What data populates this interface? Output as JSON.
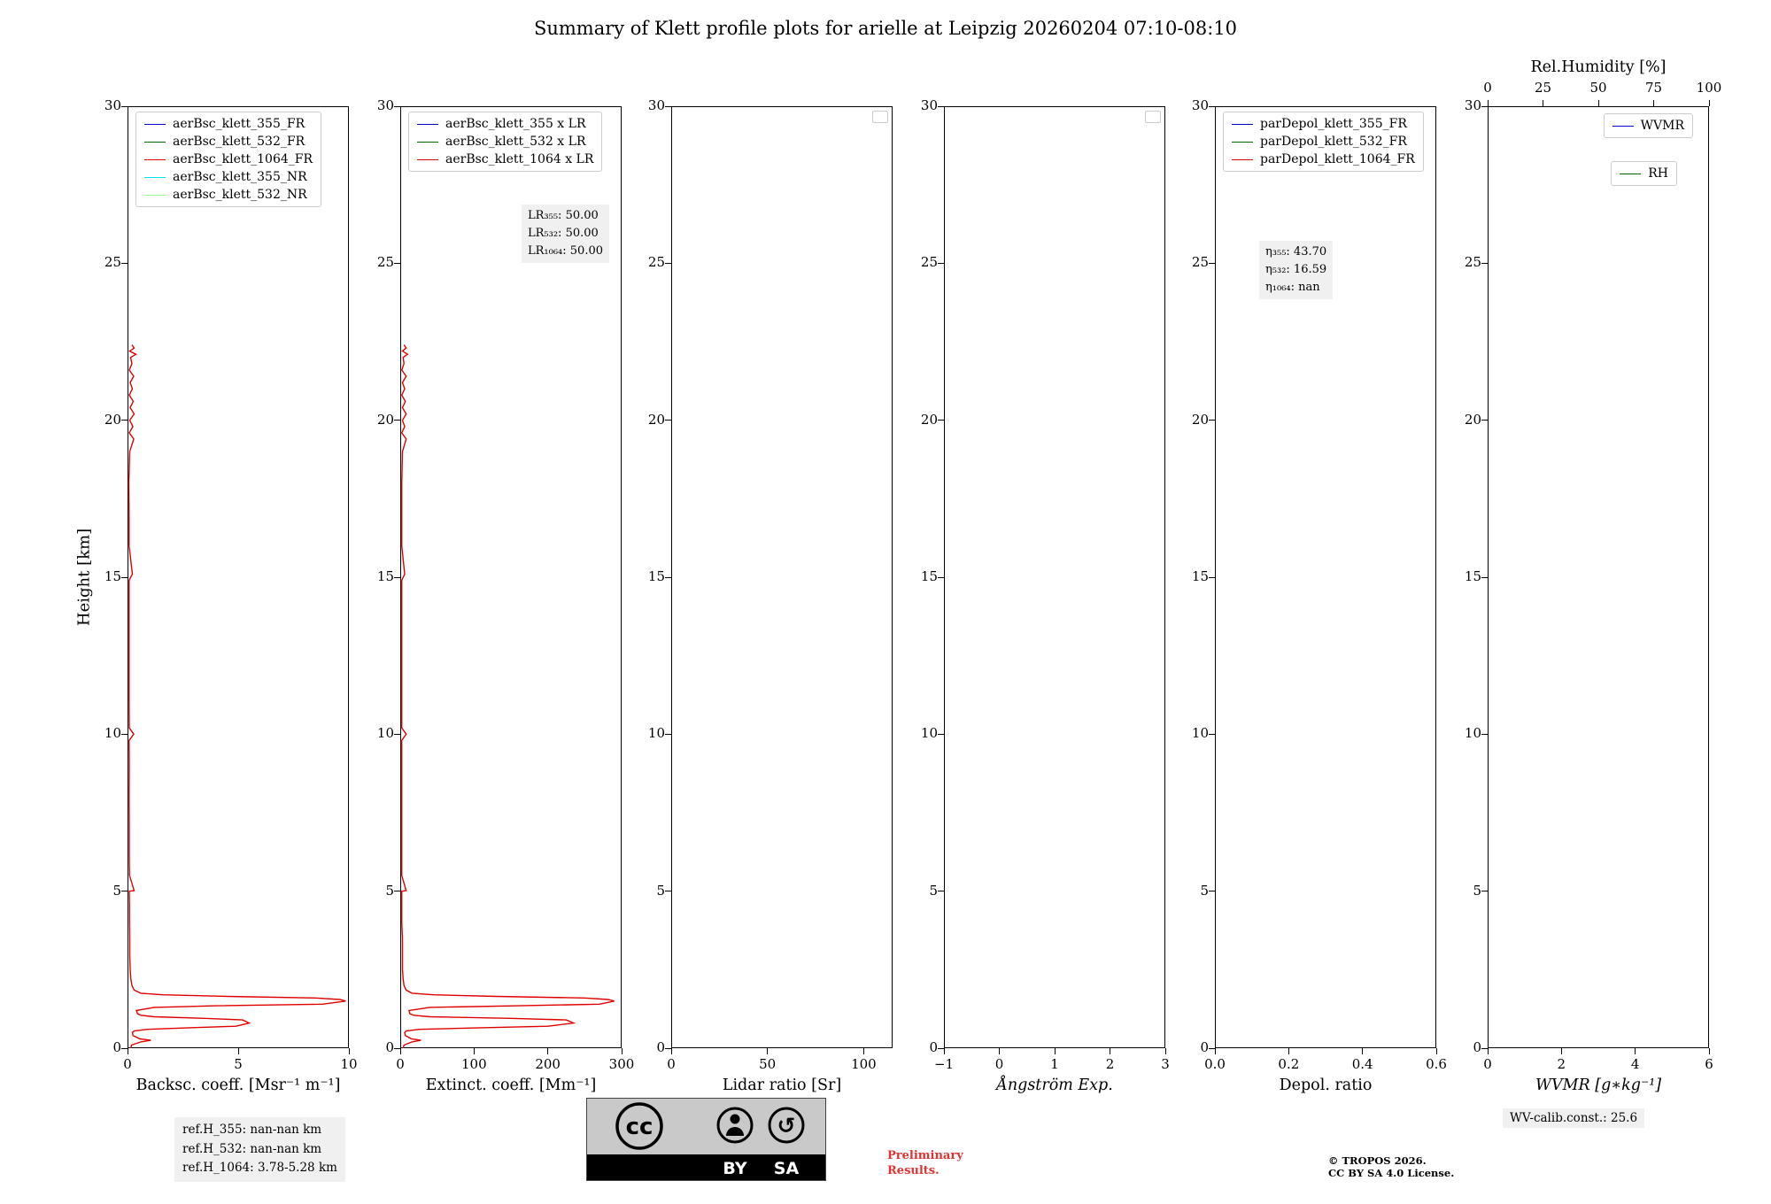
{
  "title": "Summary of Klett profile plots for arielle at Leipzig 20260204 07:10-08:10",
  "y_axis": {
    "label": "Height [km]",
    "lim": [
      0,
      30
    ],
    "ticks": [
      0,
      5,
      10,
      15,
      20,
      25,
      30
    ]
  },
  "chart_data": [
    {
      "name": "backscatter",
      "type": "line",
      "xlabel": "Backsc. coeff. [Msr⁻¹ m⁻¹]",
      "xlim": [
        0,
        10
      ],
      "x_ticks": [
        {
          "v": 0,
          "t": "0"
        },
        {
          "v": 5,
          "t": "5"
        },
        {
          "v": 10,
          "t": "10"
        }
      ],
      "legend": [
        {
          "label": "aerBsc_klett_355_FR",
          "color": "#0000cd"
        },
        {
          "label": "aerBsc_klett_532_FR",
          "color": "#006400"
        },
        {
          "label": "aerBsc_klett_1064_FR",
          "color": "#e00000"
        },
        {
          "label": "aerBsc_klett_355_NR",
          "color": "#00e5ee"
        },
        {
          "label": "aerBsc_klett_532_NR",
          "color": "#98fb98"
        }
      ],
      "series": [
        {
          "name": "aerBsc_klett_1064_FR",
          "color": "#e00000",
          "heights": [
            0.0,
            0.1,
            0.2,
            0.25,
            0.3,
            0.4,
            0.5,
            0.55,
            0.6,
            0.65,
            0.7,
            0.8,
            0.9,
            0.95,
            1.0,
            1.05,
            1.1,
            1.2,
            1.3,
            1.35,
            1.4,
            1.5,
            1.55,
            1.6,
            1.65,
            1.7,
            1.75,
            1.85,
            2.0,
            2.2,
            2.5,
            3.0,
            3.5,
            4.0,
            4.5,
            5.0,
            5.02,
            5.5,
            6.0,
            7.0,
            8.0,
            9.0,
            9.8,
            10.0,
            10.2,
            11.0,
            12.0,
            13.0,
            14.0,
            14.9,
            15.1,
            16.0,
            17.0,
            18.0,
            19.0,
            19.4,
            19.6,
            19.8,
            20.0,
            20.2,
            20.4,
            20.6,
            20.8,
            21.0,
            21.2,
            21.4,
            21.6,
            21.8,
            22.0,
            22.1,
            22.2,
            22.3,
            22.4
          ],
          "values": [
            0.15,
            0.18,
            0.6,
            1.05,
            0.55,
            0.25,
            0.22,
            0.3,
            0.9,
            2.8,
            4.9,
            5.5,
            5.2,
            3.5,
            1.2,
            0.6,
            0.45,
            0.4,
            1.2,
            4.0,
            8.8,
            9.85,
            9.6,
            8.5,
            4.5,
            1.6,
            0.6,
            0.3,
            0.2,
            0.15,
            0.12,
            0.1,
            0.1,
            0.09,
            0.09,
            0.08,
            0.3,
            0.09,
            0.08,
            0.08,
            0.07,
            0.08,
            0.07,
            0.28,
            0.08,
            0.07,
            0.07,
            0.07,
            0.07,
            0.07,
            0.22,
            0.07,
            0.07,
            0.06,
            0.1,
            0.28,
            0.08,
            0.24,
            0.1,
            0.3,
            0.12,
            0.26,
            0.08,
            0.22,
            0.12,
            0.28,
            0.08,
            0.2,
            0.14,
            0.38,
            0.1,
            0.3,
            0.2
          ]
        }
      ]
    },
    {
      "name": "extinction",
      "type": "line",
      "xlabel": "Extinct. coeff. [Mm⁻¹]",
      "xlim": [
        0,
        300
      ],
      "x_ticks": [
        {
          "v": 0,
          "t": "0"
        },
        {
          "v": 100,
          "t": "100"
        },
        {
          "v": 200,
          "t": "200"
        },
        {
          "v": 300,
          "t": "300"
        }
      ],
      "legend": [
        {
          "label": "aerBsc_klett_355 x LR",
          "color": "#0000cd"
        },
        {
          "label": "aerBsc_klett_532 x LR",
          "color": "#006400"
        },
        {
          "label": "aerBsc_klett_1064 x LR",
          "color": "#e00000"
        }
      ],
      "notes": [
        "LR₃₅₅: 50.00",
        "LR₅₃₂: 50.00",
        "LR₁₀₆₄: 50.00"
      ],
      "series": [
        {
          "name": "aerBsc_klett_1064 x LR",
          "color": "#e00000",
          "heights": [
            0.0,
            0.1,
            0.2,
            0.25,
            0.3,
            0.4,
            0.5,
            0.55,
            0.6,
            0.65,
            0.7,
            0.8,
            0.9,
            0.95,
            1.0,
            1.05,
            1.1,
            1.2,
            1.3,
            1.35,
            1.4,
            1.5,
            1.55,
            1.6,
            1.65,
            1.7,
            1.75,
            1.85,
            2.0,
            2.2,
            2.5,
            3.0,
            3.5,
            4.0,
            4.5,
            5.0,
            5.02,
            5.5,
            6.0,
            7.0,
            8.0,
            9.0,
            9.8,
            10.0,
            10.2,
            11.0,
            12.0,
            13.0,
            14.0,
            14.9,
            15.1,
            16.0,
            17.0,
            18.0,
            19.0,
            19.4,
            19.6,
            19.8,
            20.0,
            20.2,
            20.4,
            20.6,
            20.8,
            21.0,
            21.2,
            21.4,
            21.6,
            21.8,
            22.0,
            22.1,
            22.2,
            22.3,
            22.4
          ],
          "values": [
            4,
            5,
            16,
            28,
            15,
            7,
            6,
            8,
            26,
            110,
            200,
            235,
            225,
            150,
            40,
            18,
            13,
            12,
            40,
            160,
            270,
            290,
            282,
            250,
            130,
            45,
            16,
            8,
            5,
            4,
            3,
            3,
            3,
            2,
            2,
            2,
            8,
            2,
            2,
            2,
            2,
            2,
            2,
            8,
            2,
            2,
            2,
            2,
            2,
            2,
            6,
            2,
            2,
            2,
            3,
            8,
            2,
            6,
            3,
            8,
            3,
            7,
            2,
            6,
            3,
            8,
            2,
            5,
            4,
            10,
            3,
            8,
            5
          ]
        }
      ]
    },
    {
      "name": "lidar-ratio",
      "type": "line",
      "xlabel": "Lidar ratio [Sr]",
      "xlim": [
        0,
        115
      ],
      "x_ticks": [
        {
          "v": 0,
          "t": "0"
        },
        {
          "v": 50,
          "t": "50"
        },
        {
          "v": 100,
          "t": "100"
        }
      ],
      "legend_empty": true,
      "series": []
    },
    {
      "name": "angstroem-exponent",
      "type": "line",
      "xlabel": "Ångström Exp.",
      "xlabel_italic": true,
      "xlim": [
        -1,
        3
      ],
      "x_ticks": [
        {
          "v": -1,
          "t": "−1"
        },
        {
          "v": 0,
          "t": "0"
        },
        {
          "v": 1,
          "t": "1"
        },
        {
          "v": 2,
          "t": "2"
        },
        {
          "v": 3,
          "t": "3"
        }
      ],
      "legend_empty": true,
      "series": []
    },
    {
      "name": "depol-ratio",
      "type": "line",
      "xlabel": "Depol. ratio",
      "xlim": [
        0,
        0.6
      ],
      "x_ticks": [
        {
          "v": 0,
          "t": "0.0"
        },
        {
          "v": 0.2,
          "t": "0.2"
        },
        {
          "v": 0.4,
          "t": "0.4"
        },
        {
          "v": 0.6,
          "t": "0.6"
        }
      ],
      "legend": [
        {
          "label": "parDepol_klett_355_FR",
          "color": "#0000cd"
        },
        {
          "label": "parDepol_klett_532_FR",
          "color": "#006400"
        },
        {
          "label": "parDepol_klett_1064_FR",
          "color": "#e00000"
        }
      ],
      "notes": [
        "η₃₅₅: 43.70",
        "η₅₃₂: 16.59",
        "η₁₀₆₄: nan"
      ],
      "series": []
    },
    {
      "name": "wvmr",
      "type": "line",
      "xlabel": "WVMR [g∗kg⁻¹]",
      "xlabel_italic": true,
      "xlim": [
        0,
        6
      ],
      "x_ticks": [
        {
          "v": 0,
          "t": "0"
        },
        {
          "v": 2,
          "t": "2"
        },
        {
          "v": 4,
          "t": "4"
        },
        {
          "v": 6,
          "t": "6"
        }
      ],
      "top_axis": {
        "label": "Rel.Humidity [%]",
        "lim": [
          0,
          100
        ],
        "ticks": [
          {
            "v": 0,
            "t": "0"
          },
          {
            "v": 25,
            "t": "25"
          },
          {
            "v": 50,
            "t": "50"
          },
          {
            "v": 75,
            "t": "75"
          },
          {
            "v": 100,
            "t": "100"
          }
        ]
      },
      "legend_split": [
        {
          "label": "WVMR",
          "color": "#0000cd"
        },
        {
          "label": "RH",
          "color": "#006400"
        }
      ],
      "series": []
    }
  ],
  "footer": {
    "refs": [
      "ref.H_355: nan-nan km",
      "ref.H_532: nan-nan km",
      "ref.H_1064: 3.78-5.28 km"
    ],
    "cc_badge": {
      "cc": "cc",
      "by": "BY",
      "sa": "SA"
    },
    "preliminary": [
      "Preliminary",
      "Results."
    ],
    "copyright": [
      "© TROPOS 2026.",
      "CC BY SA 4.0 License."
    ],
    "wv_calib": "WV-calib.const.: 25.6"
  }
}
